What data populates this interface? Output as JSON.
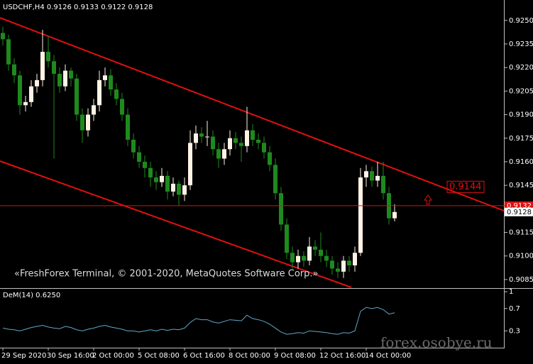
{
  "chart_data": [
    {
      "type": "candlestick",
      "title": "USDCHF,H4 0.9126 0.9133 0.9122 0.9128",
      "x": [
        "29 Sep 2020",
        null,
        null,
        null,
        null,
        null,
        null,
        null,
        "30 Sep 16:00",
        null,
        null,
        null,
        null,
        null,
        null,
        null,
        "2 Oct 00:00",
        null,
        null,
        null,
        null,
        null,
        null,
        null,
        "5 Oct 08:00",
        null,
        null,
        null,
        null,
        null,
        null,
        null,
        "6 Oct 16:00",
        null,
        null,
        null,
        null,
        null,
        null,
        null,
        "8 Oct 00:00",
        null,
        null,
        null,
        null,
        null,
        null,
        null,
        "9 Oct 08:00",
        null,
        null,
        null,
        null,
        null,
        null,
        null,
        "12 Oct 16:00",
        null,
        null,
        null,
        null,
        null,
        null,
        null,
        "14 Oct 00:00",
        null,
        null,
        null,
        null,
        null
      ],
      "ohlc": [
        [
          0.9242,
          0.9246,
          0.9234,
          0.9238
        ],
        [
          0.9238,
          0.9241,
          0.9218,
          0.9222
        ],
        [
          0.9222,
          0.9226,
          0.921,
          0.9215
        ],
        [
          0.9215,
          0.9218,
          0.919,
          0.9196
        ],
        [
          0.9196,
          0.9202,
          0.9192,
          0.9198
        ],
        [
          0.9198,
          0.9212,
          0.9195,
          0.9208
        ],
        [
          0.9208,
          0.9216,
          0.9204,
          0.9212
        ],
        [
          0.9212,
          0.9244,
          0.9208,
          0.923
        ],
        [
          0.923,
          0.924,
          0.922,
          0.9224
        ],
        [
          0.9224,
          0.9228,
          0.9162,
          0.9216
        ],
        [
          0.9216,
          0.922,
          0.9204,
          0.9208
        ],
        [
          0.9208,
          0.9222,
          0.9205,
          0.9218
        ],
        [
          0.9218,
          0.922,
          0.9208,
          0.9213
        ],
        [
          0.9213,
          0.9216,
          0.9186,
          0.919
        ],
        [
          0.919,
          0.9194,
          0.9172,
          0.918
        ],
        [
          0.918,
          0.9194,
          0.9176,
          0.919
        ],
        [
          0.919,
          0.92,
          0.9186,
          0.9196
        ],
        [
          0.9196,
          0.9218,
          0.9192,
          0.9212
        ],
        [
          0.9212,
          0.922,
          0.9208,
          0.9215
        ],
        [
          0.9215,
          0.9219,
          0.9202,
          0.9206
        ],
        [
          0.9206,
          0.921,
          0.9196,
          0.92
        ],
        [
          0.92,
          0.9204,
          0.9186,
          0.919
        ],
        [
          0.919,
          0.9194,
          0.917,
          0.9174
        ],
        [
          0.9174,
          0.9178,
          0.9162,
          0.9166
        ],
        [
          0.9166,
          0.917,
          0.9156,
          0.916
        ],
        [
          0.916,
          0.9164,
          0.915,
          0.9156
        ],
        [
          0.9156,
          0.916,
          0.9144,
          0.915
        ],
        [
          0.915,
          0.9154,
          0.9142,
          0.9147
        ],
        [
          0.9147,
          0.9156,
          0.9144,
          0.9151
        ],
        [
          0.9151,
          0.9154,
          0.9136,
          0.9141
        ],
        [
          0.9141,
          0.915,
          0.9138,
          0.9146
        ],
        [
          0.9146,
          0.9148,
          0.9132,
          0.9139
        ],
        [
          0.9139,
          0.915,
          0.9135,
          0.9145
        ],
        [
          0.9145,
          0.918,
          0.9142,
          0.9172
        ],
        [
          0.9172,
          0.9183,
          0.9168,
          0.9178
        ],
        [
          0.9178,
          0.9182,
          0.9172,
          0.9176
        ],
        [
          0.9176,
          0.9186,
          0.917,
          0.9176
        ],
        [
          0.9176,
          0.918,
          0.9164,
          0.9168
        ],
        [
          0.9168,
          0.9172,
          0.9156,
          0.9162
        ],
        [
          0.9162,
          0.9172,
          0.9158,
          0.9168
        ],
        [
          0.9168,
          0.918,
          0.9164,
          0.9175
        ],
        [
          0.9175,
          0.9179,
          0.9168,
          0.9172
        ],
        [
          0.9172,
          0.9176,
          0.916,
          0.917
        ],
        [
          0.917,
          0.9195,
          0.9166,
          0.918
        ],
        [
          0.918,
          0.9184,
          0.917,
          0.9174
        ],
        [
          0.9174,
          0.9178,
          0.9168,
          0.9172
        ],
        [
          0.9172,
          0.9176,
          0.9162,
          0.9166
        ],
        [
          0.9166,
          0.917,
          0.9154,
          0.9158
        ],
        [
          0.9158,
          0.9162,
          0.9136,
          0.914
        ],
        [
          0.914,
          0.9144,
          0.9116,
          0.912
        ],
        [
          0.912,
          0.9124,
          0.9098,
          0.9102
        ],
        [
          0.9102,
          0.9106,
          0.9092,
          0.9096
        ],
        [
          0.9096,
          0.9104,
          0.9092,
          0.91
        ],
        [
          0.91,
          0.9103,
          0.9093,
          0.9097
        ],
        [
          0.9097,
          0.9112,
          0.9094,
          0.9106
        ],
        [
          0.9106,
          0.911,
          0.91,
          0.9104
        ],
        [
          0.9104,
          0.9115,
          0.9096,
          0.91
        ],
        [
          0.91,
          0.9104,
          0.9093,
          0.9097
        ],
        [
          0.9097,
          0.91,
          0.9088,
          0.9092
        ],
        [
          0.9092,
          0.9096,
          0.9086,
          0.909
        ],
        [
          0.909,
          0.91,
          0.9086,
          0.9097
        ],
        [
          0.9097,
          0.91,
          0.909,
          0.9094
        ],
        [
          0.9094,
          0.9106,
          0.909,
          0.9102
        ],
        [
          0.9102,
          0.9156,
          0.91,
          0.915
        ],
        [
          0.915,
          0.9158,
          0.9144,
          0.9154
        ],
        [
          0.9154,
          0.9157,
          0.9144,
          0.9148
        ],
        [
          0.9148,
          0.916,
          0.9144,
          0.9151
        ],
        [
          0.9151,
          0.916,
          0.9136,
          0.914
        ],
        [
          0.914,
          0.9144,
          0.912,
          0.9124
        ],
        [
          0.9124,
          0.9133,
          0.9122,
          0.9128
        ]
      ],
      "bull_color": "#fff3e6",
      "bear_color": "#1e8a1e",
      "ylim": [
        0.908,
        0.9263
      ],
      "yticks": [
        {
          "value": 0.925,
          "label": "0.9250"
        },
        0.9235,
        {
          "value": 0.922,
          "label": "0.9220"
        },
        0.9205,
        {
          "value": 0.919,
          "label": "0.9190"
        },
        0.9175,
        {
          "value": 0.916,
          "label": "0.9160"
        },
        0.9145,
        0.9115,
        {
          "value": 0.91,
          "label": "0.9100"
        },
        0.9085
      ],
      "ask": 0.9132,
      "bid": 0.9128,
      "alert_level": 0.9144,
      "annotations": [
        "«FreshForex Terminal, © 2001-2020, MetaQuotes Software Corp.»"
      ]
    },
    {
      "type": "line",
      "title": "DeM(14) 0.6250",
      "color": "#5fa8c8",
      "values": [
        0.35,
        0.33,
        0.32,
        0.3,
        0.33,
        0.36,
        0.38,
        0.4,
        0.37,
        0.35,
        0.34,
        0.38,
        0.36,
        0.32,
        0.3,
        0.33,
        0.35,
        0.38,
        0.4,
        0.37,
        0.35,
        0.33,
        0.3,
        0.3,
        0.28,
        0.3,
        0.32,
        0.3,
        0.33,
        0.31,
        0.33,
        0.32,
        0.35,
        0.45,
        0.52,
        0.5,
        0.5,
        0.46,
        0.44,
        0.47,
        0.5,
        0.49,
        0.48,
        0.58,
        0.52,
        0.5,
        0.47,
        0.42,
        0.35,
        0.28,
        0.24,
        0.25,
        0.27,
        0.26,
        0.3,
        0.29,
        0.28,
        0.27,
        0.25,
        0.24,
        0.27,
        0.26,
        0.3,
        0.65,
        0.72,
        0.7,
        0.72,
        0.68,
        0.6,
        0.625
      ],
      "ylim": [
        0,
        1.04
      ],
      "yticks": [
        1,
        0.7,
        0.3
      ]
    }
  ],
  "watermark": "forex.osobye.ru"
}
